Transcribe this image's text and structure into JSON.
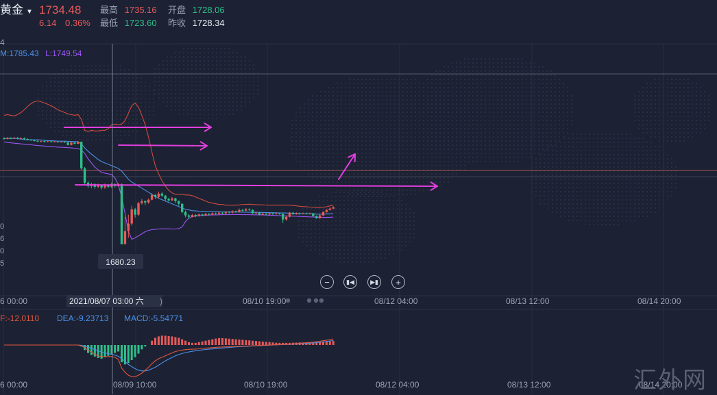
{
  "header": {
    "name": "黄金",
    "price": "1734.48",
    "change": "6.14",
    "change_pct": "0.36%",
    "high_label": "最高",
    "high": "1735.16",
    "open_label": "开盘",
    "open": "1728.06",
    "low_label": "最低",
    "low": "1723.60",
    "prev_label": "昨收",
    "prev": "1728.34"
  },
  "boll_legend": {
    "m": "M:1785.43",
    "l": "L:1749.54",
    "stub": "4"
  },
  "price_label_callout": "1680.23",
  "left_axis_fragments": [
    "0",
    "6",
    "0",
    "5"
  ],
  "time_axis": {
    "ticks": [
      "6 00:00",
      "08/10 19:00",
      "08/12 04:00",
      "08/13 12:00",
      "08/14 20:00"
    ],
    "cursor_label": "2021/08/07 03:00 六",
    "cursor_tail": ")"
  },
  "macd_legend": {
    "diff": "F:-12.0110",
    "dea": "DEA:-9.23713",
    "macd": "MACD:-5.54771"
  },
  "bottom_axis": {
    "ticks": [
      "6 00:00",
      "08/09 10:00",
      "08/10 19:00",
      "08/12 04:00",
      "08/13 12:00",
      "08/14 20:00"
    ]
  },
  "controls": {
    "zoom_out_icon": "minus-icon",
    "prev_icon": "skip-back-icon",
    "next_icon": "skip-forward-icon",
    "zoom_in_icon": "plus-icon"
  },
  "watermark": "汇外网",
  "colors": {
    "up": "#e95a5a",
    "down": "#2fbf8a",
    "upper_band": "#d0493f",
    "mid_band": "#4d8fe8",
    "lower_band": "#9a55f0",
    "annotation": "#e23ee0",
    "dea": "#4d8fe8",
    "diff": "#e0553d"
  },
  "chart_data": {
    "type": "candlestick",
    "price_panel": {
      "candles": [
        [
          1758.1,
          1757.6,
          1758.8,
          1757.0
        ],
        [
          1757.6,
          1758.3,
          1759.0,
          1757.2
        ],
        [
          1758.3,
          1757.9,
          1758.9,
          1757.4
        ],
        [
          1757.9,
          1758.4,
          1759.1,
          1757.5
        ],
        [
          1758.4,
          1757.8,
          1758.9,
          1757.3
        ],
        [
          1757.8,
          1758.2,
          1758.8,
          1757.4
        ],
        [
          1758.2,
          1757.6,
          1758.7,
          1757.1
        ],
        [
          1757.6,
          1757.1,
          1758.0,
          1756.6
        ],
        [
          1757.1,
          1756.6,
          1757.5,
          1756.1
        ],
        [
          1756.6,
          1756.2,
          1757.1,
          1755.7
        ],
        [
          1756.2,
          1755.8,
          1756.6,
          1755.3
        ],
        [
          1755.8,
          1756.0,
          1756.4,
          1755.2
        ],
        [
          1756.0,
          1755.6,
          1756.4,
          1755.0
        ],
        [
          1755.6,
          1755.9,
          1756.3,
          1755.1
        ],
        [
          1755.9,
          1755.5,
          1756.2,
          1755.0
        ],
        [
          1755.5,
          1755.7,
          1756.1,
          1755.0
        ],
        [
          1755.7,
          1755.3,
          1756.0,
          1754.9
        ],
        [
          1755.3,
          1755.6,
          1755.9,
          1754.9
        ],
        [
          1755.6,
          1755.1,
          1755.9,
          1754.7
        ],
        [
          1755.1,
          1753.2,
          1755.4,
          1752.8
        ],
        [
          1753.2,
          1755.0,
          1755.5,
          1752.9
        ],
        [
          1755.0,
          1754.1,
          1755.3,
          1753.5
        ],
        [
          1754.1,
          1755.5,
          1756.2,
          1753.8
        ],
        [
          1755.5,
          1736.0,
          1755.8,
          1735.0
        ],
        [
          1736.0,
          1725.5,
          1737.0,
          1724.0
        ],
        [
          1725.5,
          1723.0,
          1726.8,
          1721.8
        ],
        [
          1723.0,
          1724.5,
          1725.5,
          1721.5
        ],
        [
          1724.5,
          1722.5,
          1725.0,
          1721.0
        ],
        [
          1722.5,
          1723.5,
          1724.8,
          1721.5
        ],
        [
          1723.5,
          1722.0,
          1724.0,
          1720.5
        ],
        [
          1722.0,
          1724.0,
          1724.8,
          1721.0
        ],
        [
          1724.0,
          1722.5,
          1724.5,
          1721.5
        ],
        [
          1722.5,
          1724.5,
          1725.5,
          1721.5
        ],
        [
          1724.5,
          1723.0,
          1725.0,
          1722.0
        ],
        [
          1723.0,
          1724.5,
          1725.2,
          1722.5
        ],
        [
          1724.5,
          1680.3,
          1724.8,
          1680.2
        ],
        [
          1680.3,
          1690.0,
          1700.5,
          1688.0
        ],
        [
          1690.0,
          1695.5,
          1702.0,
          1685.0
        ],
        [
          1695.5,
          1706.0,
          1708.5,
          1694.0
        ],
        [
          1706.0,
          1702.0,
          1707.0,
          1700.0
        ],
        [
          1702.0,
          1710.5,
          1711.5,
          1701.0
        ],
        [
          1710.5,
          1712.0,
          1713.5,
          1709.5
        ],
        [
          1712.0,
          1711.0,
          1712.5,
          1709.0
        ],
        [
          1711.0,
          1713.0,
          1714.0,
          1710.0
        ],
        [
          1713.0,
          1716.5,
          1717.8,
          1712.5
        ],
        [
          1716.5,
          1715.0,
          1717.0,
          1713.5
        ],
        [
          1715.0,
          1717.5,
          1719.0,
          1714.0
        ],
        [
          1717.5,
          1716.0,
          1718.5,
          1715.0
        ],
        [
          1716.0,
          1713.5,
          1716.5,
          1712.0
        ],
        [
          1713.5,
          1712.5,
          1714.5,
          1711.5
        ],
        [
          1712.5,
          1714.0,
          1715.0,
          1712.0
        ],
        [
          1714.0,
          1712.0,
          1714.5,
          1710.5
        ],
        [
          1712.0,
          1710.0,
          1712.5,
          1708.5
        ],
        [
          1710.0,
          1704.0,
          1710.5,
          1703.0
        ],
        [
          1704.0,
          1701.5,
          1705.0,
          1700.0
        ],
        [
          1701.5,
          1700.5,
          1702.5,
          1699.0
        ],
        [
          1700.5,
          1701.8,
          1702.6,
          1700.0
        ],
        [
          1701.8,
          1701.0,
          1702.4,
          1700.2
        ],
        [
          1701.0,
          1702.2,
          1702.9,
          1700.6
        ],
        [
          1702.2,
          1701.6,
          1702.8,
          1700.9
        ],
        [
          1701.6,
          1702.6,
          1703.3,
          1701.0
        ],
        [
          1702.6,
          1702.0,
          1703.1,
          1701.4
        ],
        [
          1702.0,
          1703.0,
          1703.7,
          1701.5
        ],
        [
          1703.0,
          1702.5,
          1703.6,
          1701.8
        ],
        [
          1702.5,
          1703.5,
          1704.2,
          1702.0
        ],
        [
          1703.5,
          1703.0,
          1704.1,
          1702.4
        ],
        [
          1703.0,
          1704.0,
          1704.7,
          1702.5
        ],
        [
          1704.0,
          1703.5,
          1704.6,
          1702.9
        ],
        [
          1703.5,
          1704.5,
          1705.2,
          1703.0
        ],
        [
          1704.5,
          1704.0,
          1705.0,
          1703.4
        ],
        [
          1704.0,
          1705.5,
          1706.5,
          1703.5
        ],
        [
          1705.5,
          1705.0,
          1706.3,
          1704.2
        ],
        [
          1705.0,
          1706.0,
          1706.9,
          1704.5
        ],
        [
          1706.0,
          1705.5,
          1706.7,
          1704.8
        ],
        [
          1705.5,
          1703.0,
          1706.0,
          1702.5
        ],
        [
          1703.0,
          1703.5,
          1704.2,
          1702.3
        ],
        [
          1703.5,
          1702.0,
          1704.0,
          1701.5
        ],
        [
          1702.0,
          1702.8,
          1703.5,
          1701.5
        ],
        [
          1702.8,
          1702.2,
          1703.3,
          1701.6
        ],
        [
          1702.2,
          1703.0,
          1703.6,
          1701.8
        ],
        [
          1703.0,
          1702.4,
          1703.5,
          1701.9
        ],
        [
          1702.4,
          1702.9,
          1703.6,
          1702.0
        ],
        [
          1702.9,
          1702.6,
          1703.5,
          1702.0
        ],
        [
          1702.6,
          1698.5,
          1703.0,
          1696.0
        ],
        [
          1698.5,
          1700.5,
          1701.2,
          1697.5
        ],
        [
          1700.5,
          1703.5,
          1704.0,
          1700.0
        ],
        [
          1703.5,
          1702.5,
          1703.9,
          1701.8
        ],
        [
          1702.5,
          1703.0,
          1703.7,
          1702.0
        ],
        [
          1703.0,
          1702.6,
          1703.5,
          1702.0
        ],
        [
          1702.6,
          1703.1,
          1703.6,
          1702.2
        ],
        [
          1703.1,
          1702.7,
          1703.5,
          1702.2
        ],
        [
          1702.7,
          1703.0,
          1703.5,
          1702.2
        ],
        [
          1703.0,
          1701.0,
          1703.4,
          1700.5
        ],
        [
          1701.0,
          1699.5,
          1701.5,
          1699.0
        ],
        [
          1699.5,
          1701.5,
          1702.0,
          1699.0
        ],
        [
          1701.5,
          1704.0,
          1704.5,
          1701.0
        ],
        [
          1704.0,
          1705.5,
          1706.0,
          1703.5
        ],
        [
          1705.5,
          1706.5,
          1707.5,
          1705.0
        ],
        [
          1706.5,
          1707.5,
          1708.2,
          1706.0
        ]
      ],
      "upper_band": [
        1775.0,
        1775.5,
        1775.0,
        1774.5,
        1775.5,
        1777.0,
        1779.0,
        1781.5,
        1783.5,
        1785.0,
        1785.5,
        1785.0,
        1784.0,
        1783.0,
        1782.0,
        1780.5,
        1779.0,
        1778.0,
        1777.0,
        1776.0,
        1775.5,
        1775.0,
        1775.5,
        1772.0,
        1764.0,
        1763.0,
        1764.0,
        1763.5,
        1763.5,
        1764.0,
        1764.0,
        1765.0,
        1768.0,
        1768.5,
        1768.0,
        1768.5,
        1771.0,
        1776.5,
        1782.0,
        1784.0,
        1781.0,
        1775.0,
        1768.0,
        1759.0,
        1748.0,
        1738.0,
        1732.0,
        1727.0,
        1723.0,
        1720.0,
        1718.0,
        1717.0,
        1717.0,
        1717.0,
        1716.5,
        1716.5,
        1716.0,
        1715.0,
        1714.0,
        1713.0,
        1712.0,
        1711.0,
        1710.5,
        1710.0,
        1709.5,
        1709.5,
        1709.0,
        1709.0,
        1709.0,
        1709.0,
        1709.2,
        1709.5,
        1709.6,
        1709.7,
        1709.6,
        1709.4,
        1709.3,
        1709.2,
        1709.1,
        1709.0,
        1709.0,
        1709.0,
        1709.0,
        1709.0,
        1709.0,
        1709.0,
        1708.8,
        1708.5,
        1708.2,
        1708.0,
        1707.8,
        1707.6,
        1707.5,
        1707.4,
        1707.4,
        1707.5,
        1707.8,
        1708.5,
        1709.0
      ],
      "mid_band": [
        1758.0,
        1758.0,
        1758.0,
        1758.0,
        1758.0,
        1757.5,
        1757.0,
        1757.0,
        1757.0,
        1757.0,
        1757.0,
        1756.8,
        1756.6,
        1756.4,
        1756.3,
        1756.2,
        1756.0,
        1756.0,
        1756.0,
        1755.9,
        1755.8,
        1755.7,
        1755.6,
        1754.0,
        1751.0,
        1748.5,
        1746.5,
        1744.5,
        1742.5,
        1741.0,
        1740.0,
        1739.0,
        1738.0,
        1737.0,
        1736.0,
        1734.0,
        1731.0,
        1728.0,
        1726.0,
        1724.5,
        1723.0,
        1721.5,
        1720.0,
        1718.5,
        1717.0,
        1715.5,
        1714.0,
        1713.0,
        1712.0,
        1711.0,
        1710.0,
        1709.0,
        1708.0,
        1707.0,
        1706.0,
        1705.5,
        1705.0,
        1704.8,
        1704.6,
        1704.5,
        1704.4,
        1704.3,
        1704.3,
        1704.2,
        1704.2,
        1704.1,
        1704.1,
        1704.0,
        1704.0,
        1704.0,
        1704.0,
        1703.9,
        1703.9,
        1703.8,
        1703.8,
        1703.8,
        1703.7,
        1703.7,
        1703.6,
        1703.5,
        1703.5,
        1703.4,
        1703.3,
        1703.3,
        1703.2,
        1703.1,
        1703.0,
        1703.0,
        1702.9,
        1702.8,
        1702.7,
        1702.6,
        1702.5,
        1702.4,
        1702.3,
        1702.4,
        1702.5,
        1702.6,
        1702.6
      ],
      "lower_band": [
        1755.5,
        1755.0,
        1754.8,
        1754.5,
        1754.3,
        1754.0,
        1753.8,
        1753.5,
        1753.3,
        1753.0,
        1752.8,
        1752.6,
        1752.4,
        1752.2,
        1752.0,
        1751.8,
        1751.6,
        1751.5,
        1751.4,
        1751.2,
        1751.0,
        1750.8,
        1750.6,
        1749.5,
        1747.0,
        1743.0,
        1740.0,
        1737.0,
        1735.0,
        1733.0,
        1732.5,
        1732.0,
        1731.5,
        1729.0,
        1724.0,
        1715.0,
        1703.0,
        1690.0,
        1684.0,
        1685.0,
        1686.5,
        1688.0,
        1689.5,
        1690.5,
        1691.0,
        1691.3,
        1691.5,
        1691.6,
        1691.6,
        1691.6,
        1691.5,
        1691.5,
        1691.8,
        1693.0,
        1697.0,
        1699.5,
        1700.5,
        1701.0,
        1701.3,
        1701.5,
        1701.6,
        1701.7,
        1701.8,
        1701.8,
        1701.9,
        1702.0,
        1702.0,
        1702.0,
        1702.1,
        1702.1,
        1702.1,
        1702.0,
        1702.0,
        1702.0,
        1701.9,
        1701.9,
        1701.8,
        1701.8,
        1701.7,
        1701.6,
        1701.5,
        1701.4,
        1701.3,
        1701.2,
        1701.1,
        1701.0,
        1700.9,
        1700.8,
        1700.7,
        1700.6,
        1700.5,
        1700.4,
        1700.3,
        1700.2,
        1700.1,
        1700.0,
        1700.0,
        1700.1,
        1700.2
      ],
      "horizontal_levels": [
        1734.48,
        1762.0,
        1703.0
      ]
    },
    "macd_panel": {
      "histogram": [
        0,
        0,
        0,
        0,
        0,
        0,
        0,
        0,
        0,
        0,
        0,
        0,
        0,
        0,
        0,
        0,
        0,
        0,
        0,
        0,
        0,
        0,
        0,
        -1.0,
        -3.5,
        -5.5,
        -7.0,
        -8.0,
        -9.0,
        -9.5,
        -8.5,
        -7.5,
        -6.5,
        -5.5,
        -4.5,
        -12.0,
        -13.5,
        -12.5,
        -10.5,
        -8.5,
        -6.0,
        -3.0,
        -1.0,
        0.0,
        3.0,
        5.0,
        6.0,
        6.5,
        6.5,
        6.2,
        6.0,
        5.5,
        5.0,
        4.0,
        3.0,
        2.0,
        1.5,
        1.5,
        2.0,
        2.5,
        3.0,
        3.5,
        4.0,
        4.5,
        4.8,
        4.8,
        4.6,
        4.4,
        4.2,
        4.0,
        3.8,
        3.6,
        3.4,
        3.2,
        3.0,
        2.8,
        2.6,
        2.4,
        2.2,
        2.0,
        1.8,
        1.6,
        1.5,
        1.5,
        1.5,
        1.5,
        1.6,
        1.7,
        1.8,
        1.8,
        1.8,
        1.8,
        1.8,
        1.9,
        2.0,
        2.2,
        2.4,
        2.6,
        2.8
      ],
      "diff": [
        0,
        0,
        0,
        0,
        0,
        0,
        0,
        0,
        0,
        0,
        0,
        0,
        0,
        0,
        0,
        0,
        0,
        0,
        0,
        0,
        0,
        0,
        0,
        -0.5,
        -2.0,
        -3.5,
        -5.0,
        -6.5,
        -7.5,
        -8.0,
        -8.2,
        -8.0,
        -8.0,
        -8.5,
        -10.0,
        -16.0,
        -19.0,
        -21.0,
        -22.0,
        -22.0,
        -21.0,
        -19.5,
        -17.5,
        -15.5,
        -13.0,
        -11.0,
        -9.5,
        -8.5,
        -7.5,
        -6.5,
        -5.5,
        -4.5,
        -4.0,
        -3.5,
        -3.2,
        -3.0,
        -2.9,
        -2.8,
        -2.6,
        -2.4,
        -2.2,
        -2.0,
        -1.8,
        -1.6,
        -1.5,
        -1.4,
        -1.3,
        -1.2,
        -1.1,
        -1.0,
        -0.9,
        -0.8,
        -0.7,
        -0.6,
        -0.5,
        -0.4,
        -0.3,
        -0.2,
        -0.1,
        0.0,
        0.1,
        0.2,
        0.3,
        0.4,
        0.5,
        0.6,
        0.8,
        1.0,
        1.2,
        1.4,
        1.6,
        1.8,
        2.0,
        2.3,
        2.6,
        3.0,
        3.4,
        3.8,
        4.2
      ],
      "dea": [
        0,
        0,
        0,
        0,
        0,
        0,
        0,
        0,
        0,
        0,
        0,
        0,
        0,
        0,
        0,
        0,
        0,
        0,
        0,
        0,
        0,
        0,
        0,
        -0.2,
        -0.8,
        -1.5,
        -2.3,
        -3.2,
        -4.0,
        -4.8,
        -5.5,
        -6.0,
        -6.5,
        -7.0,
        -7.8,
        -9.5,
        -11.5,
        -13.5,
        -15.0,
        -16.5,
        -17.5,
        -18.0,
        -18.0,
        -17.5,
        -16.5,
        -15.5,
        -14.0,
        -12.5,
        -11.0,
        -9.8,
        -8.6,
        -7.5,
        -6.6,
        -5.9,
        -5.3,
        -4.8,
        -4.4,
        -4.0,
        -3.7,
        -3.4,
        -3.1,
        -2.9,
        -2.7,
        -2.5,
        -2.3,
        -2.1,
        -1.9,
        -1.7,
        -1.5,
        -1.3,
        -1.2,
        -1.0,
        -0.9,
        -0.8,
        -0.6,
        -0.5,
        -0.4,
        -0.3,
        -0.2,
        -0.1,
        0.0,
        0.1,
        0.2,
        0.3,
        0.4,
        0.5,
        0.6,
        0.7,
        0.8,
        1.0,
        1.1,
        1.3,
        1.5,
        1.7,
        1.9,
        2.2,
        2.5,
        2.8,
        3.1
      ]
    }
  }
}
